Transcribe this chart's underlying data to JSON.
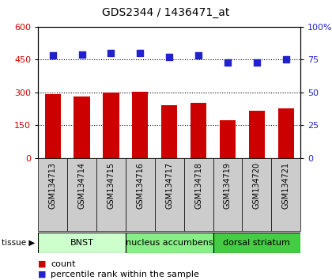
{
  "title": "GDS2344 / 1436471_at",
  "samples": [
    "GSM134713",
    "GSM134714",
    "GSM134715",
    "GSM134716",
    "GSM134717",
    "GSM134718",
    "GSM134719",
    "GSM134720",
    "GSM134721"
  ],
  "counts": [
    291,
    282,
    298,
    303,
    243,
    252,
    172,
    218,
    228
  ],
  "percentiles": [
    78,
    79,
    80,
    80,
    77,
    78,
    73,
    73,
    75
  ],
  "bar_color": "#cc0000",
  "dot_color": "#2222cc",
  "left_ylim": [
    0,
    600
  ],
  "left_yticks": [
    0,
    150,
    300,
    450,
    600
  ],
  "right_ylim": [
    0,
    100
  ],
  "right_yticks": [
    0,
    25,
    50,
    75,
    100
  ],
  "grid_values": [
    150,
    300,
    450
  ],
  "tissue_groups": [
    {
      "label": "BNST",
      "start": 0,
      "end": 3,
      "color": "#ccffcc"
    },
    {
      "label": "nucleus accumbens",
      "start": 3,
      "end": 6,
      "color": "#88ee88"
    },
    {
      "label": "dorsal striatum",
      "start": 6,
      "end": 9,
      "color": "#44cc44"
    }
  ],
  "legend_count_label": "count",
  "legend_pct_label": "percentile rank within the sample",
  "tissue_label": "tissue",
  "plot_bg": "#ffffff",
  "xlabel_bg": "#cccccc",
  "bar_width": 0.55
}
